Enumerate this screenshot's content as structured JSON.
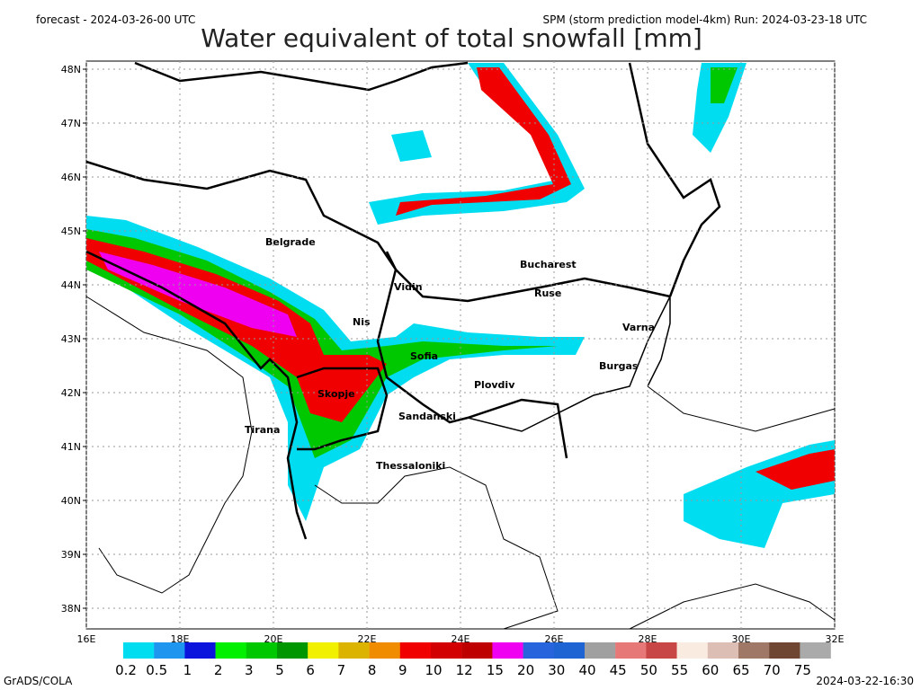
{
  "header": {
    "forecast": "forecast - 2024-03-26-00 UTC",
    "model": "SPM (storm prediction model-4km) Run: 2024-03-23-18 UTC",
    "title": "Water equivalent of total snowfall  [mm]"
  },
  "map": {
    "lat_ticks": [
      "48N",
      "47N",
      "46N",
      "45N",
      "44N",
      "43N",
      "42N",
      "41N",
      "40N",
      "39N",
      "38N"
    ],
    "lon_ticks": [
      "16E",
      "18E",
      "20E",
      "22E",
      "24E",
      "26E",
      "28E",
      "30E",
      "32E"
    ],
    "cities": [
      "Belgrade",
      "Bucharest",
      "Vidin",
      "Ruse",
      "Nis",
      "Varna",
      "Sofia",
      "Burgas",
      "Plovdiv",
      "Skopje",
      "Sandanski",
      "Tirana",
      "Thessaloniki"
    ]
  },
  "legend": {
    "levels": [
      {
        "label": "0.2",
        "color": "#00dcf0"
      },
      {
        "label": "0.5",
        "color": "#1e96f0"
      },
      {
        "label": "1",
        "color": "#0a14dc"
      },
      {
        "label": "2",
        "color": "#00f000"
      },
      {
        "label": "3",
        "color": "#00c800"
      },
      {
        "label": "5",
        "color": "#009600"
      },
      {
        "label": "6",
        "color": "#f0f000"
      },
      {
        "label": "7",
        "color": "#dcb400"
      },
      {
        "label": "8",
        "color": "#f08c00"
      },
      {
        "label": "9",
        "color": "#f00000"
      },
      {
        "label": "10",
        "color": "#d20000"
      },
      {
        "label": "12",
        "color": "#be0000"
      },
      {
        "label": "15",
        "color": "#f000f0"
      },
      {
        "label": "20",
        "color": "#2864dc"
      },
      {
        "label": "30",
        "color": "#1e64d2"
      },
      {
        "label": "40",
        "color": "#a0a0a0"
      },
      {
        "label": "45",
        "color": "#e67878"
      },
      {
        "label": "50",
        "color": "#c84646"
      },
      {
        "label": "55",
        "color": "#faebe1"
      },
      {
        "label": "60",
        "color": "#dcbeb4"
      },
      {
        "label": "65",
        "color": "#a07868"
      },
      {
        "label": "70",
        "color": "#6e4632"
      },
      {
        "label": "75",
        "color": "#aaaaaa"
      }
    ]
  },
  "footer": {
    "left": "GrADS/COLA",
    "right": "2024-03-22-16:30"
  }
}
